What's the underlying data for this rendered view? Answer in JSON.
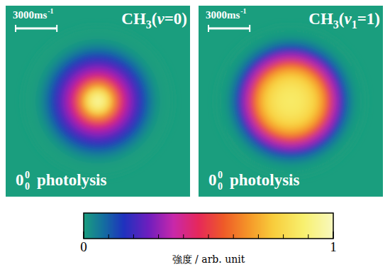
{
  "chart_data": [
    {
      "type": "radial_image",
      "title": "CH3(v=0)",
      "radius": [
        0,
        500,
        1000,
        1500,
        2000,
        2500,
        3000,
        3500,
        4000,
        4500,
        5000,
        5500
      ],
      "intensity": [
        0.96,
        0.93,
        0.82,
        0.62,
        0.44,
        0.31,
        0.22,
        0.14,
        0.07,
        0.02,
        0,
        0
      ],
      "xlim": [
        -6700,
        6700
      ],
      "ylim": [
        -6930,
        6930
      ],
      "tick_labels": false,
      "scale_bar": {
        "value": 3000,
        "label": "3000ms",
        "label_sup": "-1"
      },
      "transition": {
        "base": "0",
        "sup": "0",
        "sub": "0"
      },
      "caption": "photolysis"
    },
    {
      "type": "radial_image",
      "title": "CH3(v1=1)",
      "radius": [
        0,
        500,
        1000,
        1500,
        2000,
        2500,
        3000,
        3500,
        4000,
        4500,
        5000,
        5500
      ],
      "intensity": [
        0.86,
        0.86,
        0.85,
        0.82,
        0.77,
        0.68,
        0.52,
        0.33,
        0.17,
        0.06,
        0.01,
        0
      ],
      "xlim": [
        -6700,
        6700
      ],
      "ylim": [
        -6930,
        6930
      ],
      "tick_labels": false,
      "scale_bar": {
        "value": 3000,
        "label": "3000ms",
        "label_sup": "-1"
      },
      "transition": {
        "base": "0",
        "sup": "0",
        "sub": "0"
      },
      "caption": "photolysis"
    }
  ],
  "colorbar": {
    "range": [
      0,
      1
    ],
    "ticks": [
      0,
      1
    ],
    "minor_ticks": [
      0.1,
      0.2,
      0.3,
      0.4,
      0.5,
      0.6,
      0.7,
      0.8,
      0.9
    ],
    "label": "強度 / arb. unit"
  }
}
